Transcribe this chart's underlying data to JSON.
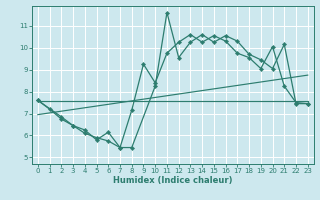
{
  "xlabel": "Humidex (Indice chaleur)",
  "bg_color": "#cde8ee",
  "line_color": "#2d7d6f",
  "grid_color": "#ffffff",
  "xlim": [
    -0.5,
    23.5
  ],
  "ylim": [
    4.7,
    11.9
  ],
  "xticks": [
    0,
    1,
    2,
    3,
    4,
    5,
    6,
    7,
    8,
    9,
    10,
    11,
    12,
    13,
    14,
    15,
    16,
    17,
    18,
    19,
    20,
    21,
    22,
    23
  ],
  "yticks": [
    5,
    6,
    7,
    8,
    9,
    10,
    11
  ],
  "line1_x": [
    0,
    1,
    2,
    3,
    4,
    5,
    6,
    7,
    8,
    10,
    11,
    12,
    13,
    14,
    15,
    16,
    17,
    18,
    19,
    20,
    21,
    22,
    23
  ],
  "line1_y": [
    7.6,
    7.2,
    6.75,
    6.45,
    6.25,
    5.8,
    6.15,
    5.45,
    5.45,
    8.25,
    11.6,
    9.55,
    10.25,
    10.6,
    10.25,
    10.55,
    10.3,
    9.7,
    9.45,
    9.05,
    10.15,
    7.45,
    7.45
  ],
  "line2_x": [
    0,
    2,
    3,
    4,
    5,
    6,
    7,
    8,
    9,
    10,
    11,
    12,
    13,
    14,
    15,
    16,
    17,
    18,
    19,
    20,
    21,
    22,
    23
  ],
  "line2_y": [
    7.6,
    6.85,
    6.45,
    6.1,
    5.9,
    5.75,
    5.45,
    7.15,
    9.25,
    8.4,
    9.75,
    10.25,
    10.6,
    10.25,
    10.55,
    10.3,
    9.75,
    9.55,
    9.05,
    10.05,
    8.25,
    7.5,
    7.45
  ],
  "line3_x": [
    0,
    23
  ],
  "line3_y": [
    7.55,
    7.55
  ],
  "line4_x": [
    0,
    23
  ],
  "line4_y": [
    6.95,
    8.75
  ]
}
